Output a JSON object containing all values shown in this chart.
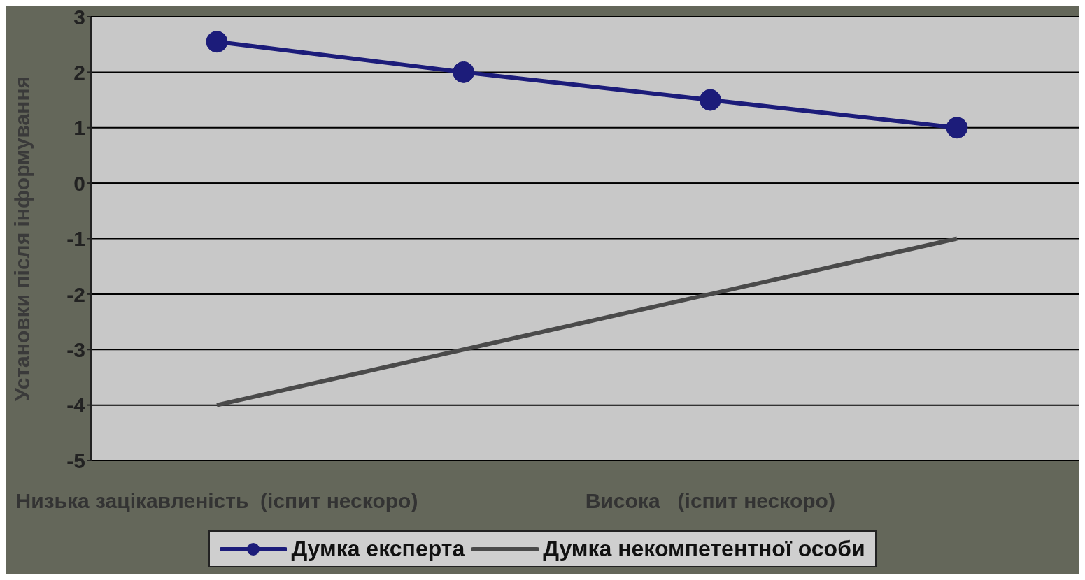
{
  "chart_data": {
    "type": "line",
    "ylabel": "Установки після інформування",
    "categories": [
      "Низька зацікавленість  (іспит нескоро)",
      null,
      "Висока   (іспит нескоро)",
      null
    ],
    "series": [
      {
        "name": "Думка експерта",
        "color": "#1c1c7a",
        "values": [
          2.55,
          2,
          1.5,
          1
        ],
        "marker": "circle"
      },
      {
        "name": "Думка некомпетентної особи",
        "color": "#4a4a4a",
        "values": [
          -4,
          -3,
          -2,
          -1
        ],
        "marker": "none"
      }
    ],
    "ylim": [
      -5,
      3
    ],
    "yticks": [
      -5,
      -4,
      -3,
      -2,
      -1,
      0,
      1,
      2,
      3
    ],
    "grid": "y",
    "legend": "bottom",
    "line_style": "solid"
  }
}
